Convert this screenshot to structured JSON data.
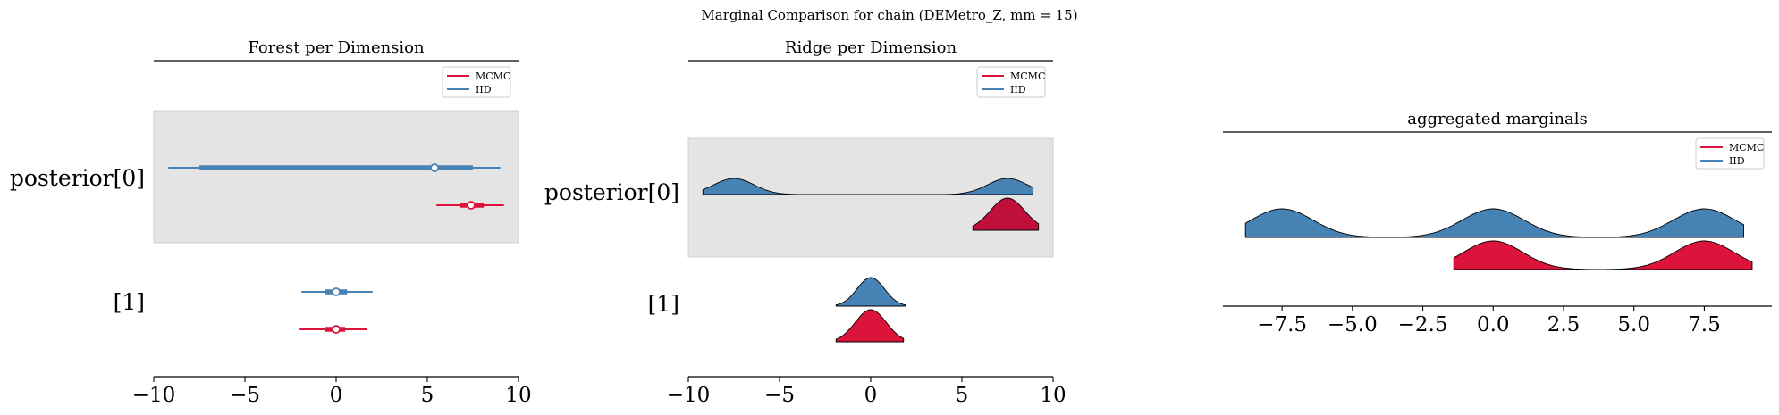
{
  "figure": {
    "suptitle": "Marginal Comparison for chain (DEMetro_Z, mm = 15)"
  },
  "colors": {
    "mcmc": "#dc143c",
    "iid": "#4682b4",
    "highlight": "#e4e4e4",
    "mcmc_ridge_top": "#c0103a"
  },
  "chart_data": [
    {
      "type": "forest",
      "title": "Forest per Dimension",
      "xlim": [
        -10,
        10
      ],
      "xticks": [
        "−10",
        "−5",
        "0",
        "5",
        "10"
      ],
      "xtick_values": [
        -10,
        -5,
        0,
        5,
        10
      ],
      "row_labels": [
        "posterior[0]",
        "[1]"
      ],
      "highlighted_row": "posterior[0]",
      "legend": {
        "entries": [
          "MCMC",
          "IID"
        ],
        "placement": "top-right"
      },
      "rows": [
        {
          "label": "posterior[0]",
          "series": [
            {
              "name": "IID",
              "hdi94": [
                -9.2,
                9.0
              ],
              "hdi50": [
                -7.5,
                7.5
              ],
              "center": 5.4
            },
            {
              "name": "MCMC",
              "hdi94": [
                5.5,
                9.2
              ],
              "hdi50": [
                6.8,
                8.1
              ],
              "center": 7.4
            }
          ]
        },
        {
          "label": "[1]",
          "series": [
            {
              "name": "IID",
              "hdi94": [
                -1.9,
                2.0
              ],
              "hdi50": [
                -0.6,
                0.6
              ],
              "center": 0.0
            },
            {
              "name": "MCMC",
              "hdi94": [
                -2.0,
                1.7
              ],
              "hdi50": [
                -0.6,
                0.5
              ],
              "center": 0.0
            }
          ]
        }
      ]
    },
    {
      "type": "ridge",
      "title": "Ridge per Dimension",
      "xlim": [
        -10,
        10
      ],
      "xticks": [
        "−10",
        "−5",
        "0",
        "5",
        "10"
      ],
      "xtick_values": [
        -10,
        -5,
        0,
        5,
        10
      ],
      "row_labels": [
        "posterior[0]",
        "[1]"
      ],
      "highlighted_row": "posterior[0]",
      "legend": {
        "entries": [
          "MCMC",
          "IID"
        ],
        "placement": "top-right"
      },
      "rows": [
        {
          "label": "posterior[0]",
          "series": [
            {
              "name": "IID",
              "range": [
                -9.2,
                8.9
              ],
              "peaks": [
                [
                  -7.5,
                  1.0
                ],
                [
                  7.5,
                  1.0
                ]
              ],
              "width": 1.1
            },
            {
              "name": "MCMC",
              "range": [
                5.6,
                9.2
              ],
              "peaks": [
                [
                  7.5,
                  1.0
                ]
              ],
              "width": 0.95
            }
          ]
        },
        {
          "label": "[1]",
          "series": [
            {
              "name": "IID",
              "range": [
                -1.9,
                1.9
              ],
              "peaks": [
                [
                  0.0,
                  1.0
                ]
              ],
              "width": 0.75
            },
            {
              "name": "MCMC",
              "range": [
                -1.9,
                1.8
              ],
              "peaks": [
                [
                  0.0,
                  1.0
                ]
              ],
              "width": 0.85
            }
          ]
        }
      ]
    },
    {
      "type": "ridge",
      "title": "aggregated marginals",
      "xlim": [
        -9.6,
        9.9
      ],
      "xticks": [
        "−7.5",
        "−5.0",
        "−2.5",
        "0.0",
        "2.5",
        "5.0",
        "7.5"
      ],
      "xtick_values": [
        -7.5,
        -5.0,
        -2.5,
        0.0,
        2.5,
        5.0,
        7.5
      ],
      "legend": {
        "entries": [
          "MCMC",
          "IID"
        ],
        "placement": "top-right"
      },
      "rows": [
        {
          "label": "",
          "series": [
            {
              "name": "IID",
              "range": [
                -8.8,
                8.9
              ],
              "peaks": [
                [
                  -7.5,
                  1.0
                ],
                [
                  0.0,
                  1.0
                ],
                [
                  7.5,
                  1.0
                ]
              ],
              "width": 1.1
            },
            {
              "name": "MCMC",
              "range": [
                -1.4,
                9.2
              ],
              "peaks": [
                [
                  0.0,
                  1.0
                ],
                [
                  7.5,
                  1.0
                ]
              ],
              "width": 1.05
            }
          ]
        }
      ]
    }
  ]
}
